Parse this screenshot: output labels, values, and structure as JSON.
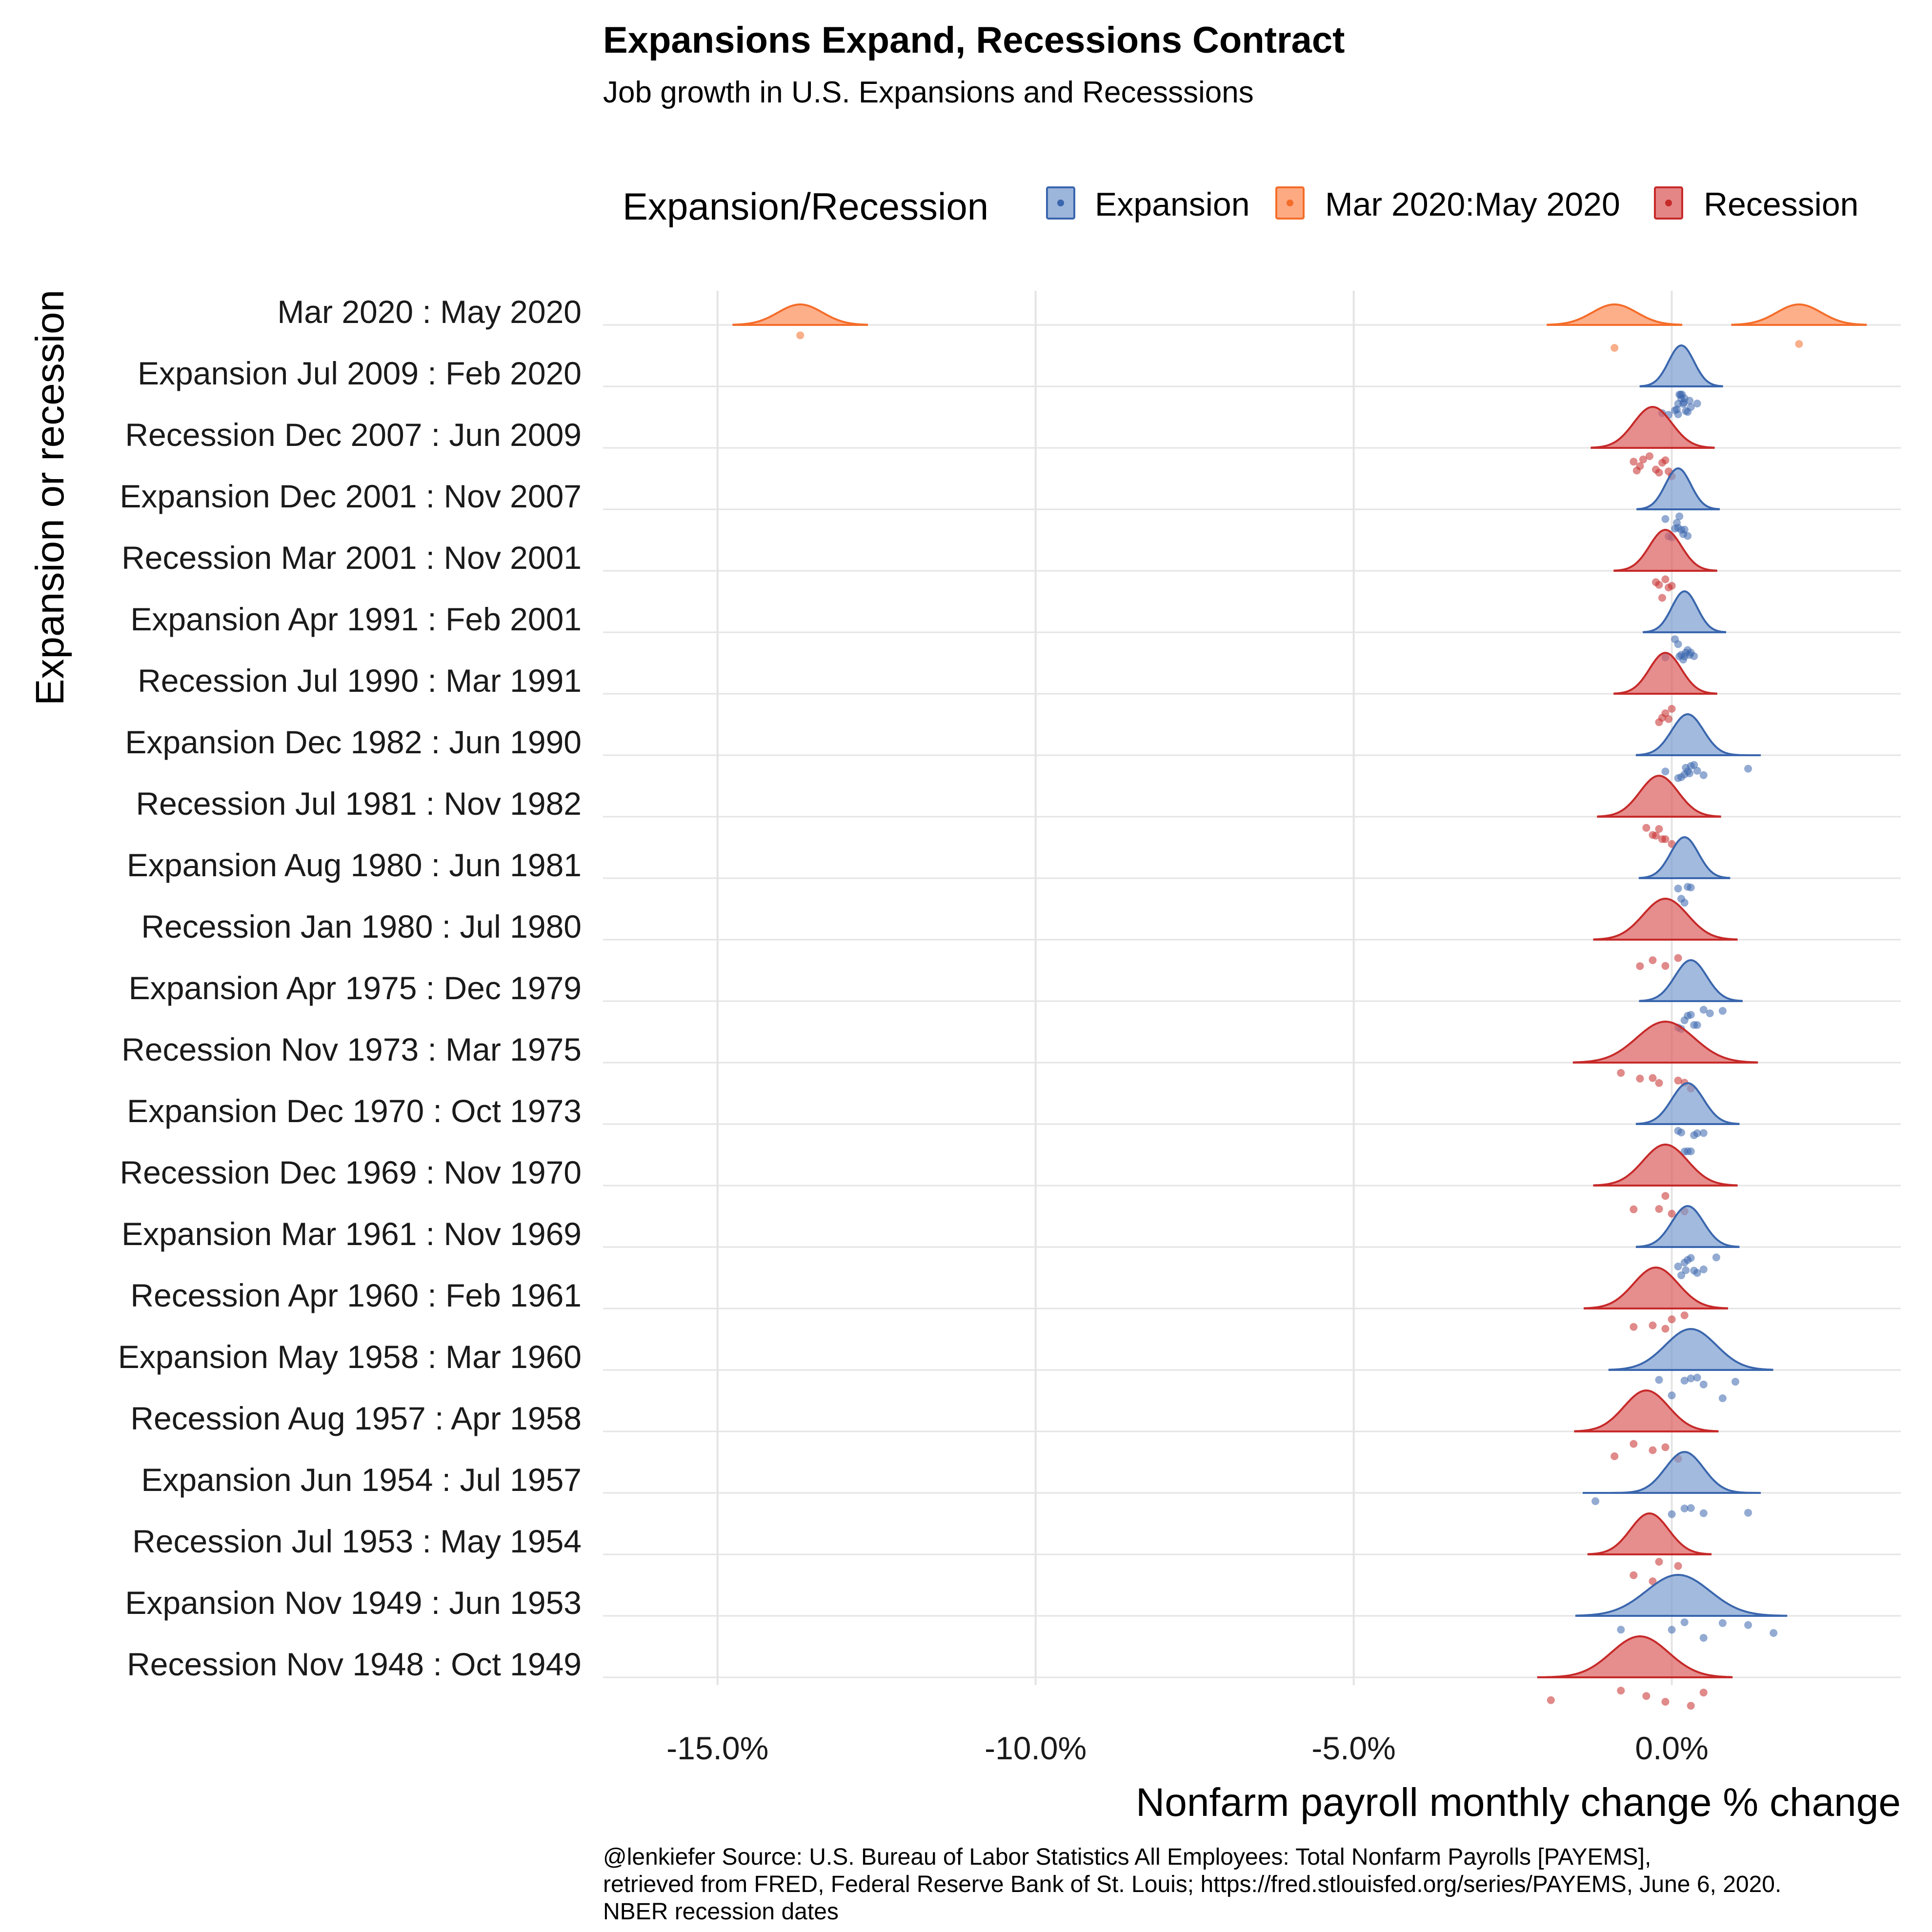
{
  "chart_data": {
    "type": "ridgeline-density",
    "title": "Expansions Expand, Recessions Contract",
    "subtitle": "Job growth in U.S. Expansions and Recesssions",
    "xlabel": "Nonfarm payroll monthly change % change",
    "ylabel": "Expansion or recession",
    "xlim": [
      -16.8,
      3.6
    ],
    "x_ticks": [
      -15,
      -10,
      -5,
      0
    ],
    "x_tick_labels": [
      "-15.0%",
      "-10.0%",
      "-5.0%",
      "0.0%"
    ],
    "grid": true,
    "legend": {
      "title": "Expansion/Recession",
      "position": "top",
      "entries": [
        {
          "label": "Expansion",
          "fill": "#7b9ccf",
          "stroke": "#3a66ad"
        },
        {
          "label": "Mar 2020:May 2020",
          "fill": "#fc8d59",
          "stroke": "#f46d2a"
        },
        {
          "label": "Recession",
          "fill": "#dc5d5d",
          "stroke": "#c62a2a"
        }
      ]
    },
    "groups": [
      {
        "label": "Mar 2020 : May 2020",
        "type": "covid",
        "peaks": [
          -13.7,
          -0.9,
          2.0
        ],
        "points": [
          -13.7,
          -0.9,
          2.0
        ]
      },
      {
        "label": "Expansion Jul 2009 : Feb 2020",
        "type": "expansion",
        "center": 0.15,
        "sd": 0.2,
        "points": [
          0.1,
          0.2,
          0.15,
          0.05,
          0.25,
          0.3,
          0.12,
          0.18,
          0.22,
          0.08,
          0.14,
          0.19,
          -0.05,
          -0.15,
          0.4,
          0.28,
          0.1,
          0.16
        ]
      },
      {
        "label": "Recession Dec 2007 : Jun 2009",
        "type": "recession",
        "center": -0.3,
        "sd": 0.3,
        "points": [
          -0.55,
          -0.6,
          -0.45,
          -0.2,
          0.0,
          -0.1,
          -0.35,
          -0.5,
          -0.15,
          -0.25,
          -0.05
        ]
      },
      {
        "label": "Expansion Dec 2001 : Nov 2007",
        "type": "expansion",
        "center": 0.1,
        "sd": 0.2,
        "points": [
          0.05,
          0.1,
          0.15,
          0.2,
          0.0,
          -0.05,
          0.12,
          0.18,
          0.25,
          0.08,
          -0.1
        ]
      },
      {
        "label": "Recession Mar 2001 : Nov 2001",
        "type": "recession",
        "center": -0.1,
        "sd": 0.25,
        "points": [
          -0.2,
          -0.1,
          0.0,
          -0.15,
          -0.05,
          -0.25
        ]
      },
      {
        "label": "Expansion Apr 1991 : Feb 2001",
        "type": "expansion",
        "center": 0.2,
        "sd": 0.2,
        "points": [
          0.1,
          0.2,
          0.25,
          0.3,
          0.15,
          0.05,
          0.35,
          0.22,
          0.18,
          -0.1,
          0.12,
          0.28
        ]
      },
      {
        "label": "Recession Jul 1990 : Mar 1991",
        "type": "recession",
        "center": -0.1,
        "sd": 0.25,
        "points": [
          -0.2,
          -0.15,
          -0.05,
          -0.1,
          0.0
        ]
      },
      {
        "label": "Expansion Dec 1982 : Jun 1990",
        "type": "expansion",
        "center": 0.25,
        "sd": 0.25,
        "points": [
          0.2,
          0.3,
          0.25,
          0.15,
          0.4,
          0.35,
          0.1,
          0.5,
          0.22,
          0.28,
          1.2,
          -0.1
        ]
      },
      {
        "label": "Recession Jul 1981 : Nov 1982",
        "type": "recession",
        "center": -0.2,
        "sd": 0.3,
        "points": [
          -0.3,
          -0.2,
          -0.1,
          -0.4,
          -0.25,
          0.0,
          -0.15
        ]
      },
      {
        "label": "Expansion Aug 1980 : Jun 1981",
        "type": "expansion",
        "center": 0.2,
        "sd": 0.22,
        "points": [
          0.1,
          0.2,
          0.15,
          0.25,
          0.3
        ]
      },
      {
        "label": "Recession Jan 1980 : Jul 1980",
        "type": "recession",
        "center": -0.1,
        "sd": 0.35,
        "points": [
          -0.5,
          -0.3,
          0.1,
          -0.1
        ]
      },
      {
        "label": "Expansion Apr 1975 : Dec 1979",
        "type": "expansion",
        "center": 0.3,
        "sd": 0.25,
        "points": [
          0.2,
          0.3,
          0.4,
          0.25,
          0.35,
          0.5,
          0.1,
          0.6,
          0.8,
          0.15
        ]
      },
      {
        "label": "Recession Nov 1973 : Mar 1975",
        "type": "recession",
        "center": -0.1,
        "sd": 0.45,
        "points": [
          -0.8,
          -0.5,
          -0.3,
          0.1,
          0.3,
          0.2,
          -0.2
        ]
      },
      {
        "label": "Expansion Dec 1970 : Oct 1973",
        "type": "expansion",
        "center": 0.25,
        "sd": 0.25,
        "points": [
          0.1,
          0.2,
          0.3,
          0.4,
          0.25,
          0.35,
          0.15,
          0.5
        ]
      },
      {
        "label": "Recession Dec 1969 : Nov 1970",
        "type": "recession",
        "center": -0.1,
        "sd": 0.35,
        "points": [
          -0.6,
          -0.2,
          -0.1,
          0.0,
          0.2
        ]
      },
      {
        "label": "Expansion Mar 1961 : Nov 1969",
        "type": "expansion",
        "center": 0.25,
        "sd": 0.25,
        "points": [
          0.2,
          0.3,
          0.25,
          0.15,
          0.35,
          0.4,
          0.1,
          0.5,
          0.22,
          0.7
        ]
      },
      {
        "label": "Recession Apr 1960 : Feb 1961",
        "type": "recession",
        "center": -0.25,
        "sd": 0.35,
        "points": [
          -0.6,
          -0.3,
          -0.1,
          0.0,
          0.2
        ]
      },
      {
        "label": "Expansion May 1958 : Mar 1960",
        "type": "expansion",
        "center": 0.3,
        "sd": 0.4,
        "points": [
          -0.2,
          0.0,
          0.3,
          0.5,
          0.8,
          0.4,
          1.0,
          0.2
        ]
      },
      {
        "label": "Recession Aug 1957 : Apr 1958",
        "type": "recession",
        "center": -0.4,
        "sd": 0.35,
        "points": [
          -0.9,
          -0.6,
          -0.3,
          -0.1,
          0.1
        ]
      },
      {
        "label": "Expansion Jun 1954 : Jul 1957",
        "type": "expansion",
        "center": 0.2,
        "sd": 0.3,
        "points": [
          -1.2,
          0.0,
          0.2,
          0.3,
          0.5,
          1.2
        ]
      },
      {
        "label": "Recession Jul 1953 : May 1954",
        "type": "recession",
        "center": -0.35,
        "sd": 0.3,
        "points": [
          -0.6,
          -0.3,
          -0.2,
          0.1
        ]
      },
      {
        "label": "Expansion Nov 1949 : Jun 1953",
        "type": "expansion",
        "center": 0.1,
        "sd": 0.5,
        "points": [
          -0.8,
          0.0,
          0.2,
          0.5,
          0.8,
          1.2,
          1.6
        ]
      },
      {
        "label": "Recession Nov 1948 : Oct 1949",
        "type": "recession",
        "center": -0.5,
        "sd": 0.45,
        "points": [
          -1.9,
          -0.8,
          -0.4,
          -0.1,
          0.3,
          0.5
        ]
      }
    ]
  },
  "caption": {
    "line1": "@lenkiefer Source: U.S. Bureau of Labor Statistics All Employees: Total Nonfarm Payrolls [PAYEMS],",
    "line2": "retrieved from FRED, Federal Reserve Bank of St. Louis; https://fred.stlouisfed.org/series/PAYEMS, June 6, 2020.",
    "line3": "NBER recession dates"
  }
}
